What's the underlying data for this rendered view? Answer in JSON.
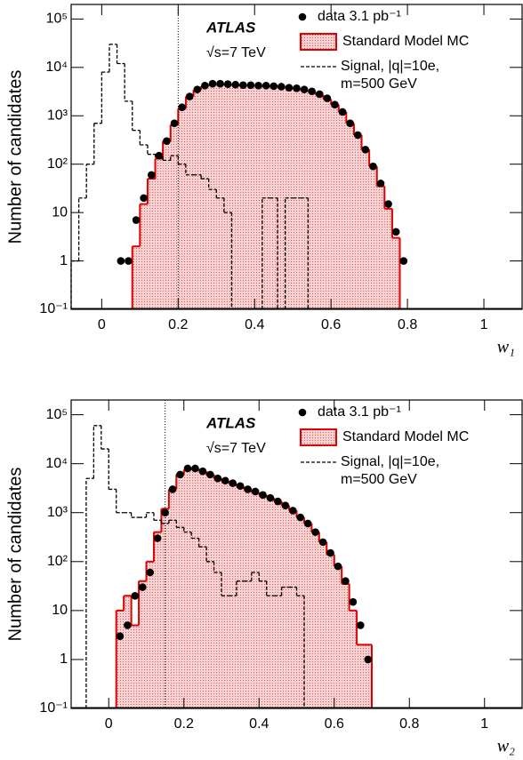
{
  "chart_data": [
    {
      "type": "histogram",
      "x_label": "w₁",
      "y_label": "Number of candidates",
      "annotations": [
        "ATLAS",
        "√s=7 TeV"
      ],
      "log_y": true,
      "vline": 0.2,
      "xlim": [
        -0.08,
        1.1
      ],
      "xticks": [
        0,
        0.2,
        0.4,
        0.6,
        0.8,
        1
      ],
      "ylim": [
        0.1,
        200000
      ],
      "yticks": [
        {
          "value": 0.1,
          "label": "10⁻¹"
        },
        1,
        10,
        {
          "value": 100,
          "label": "10²"
        },
        {
          "value": 1000,
          "label": "10³"
        },
        {
          "value": 10000,
          "label": "10⁴"
        },
        {
          "value": 100000,
          "label": "10⁵"
        }
      ],
      "bins": [
        -0.08,
        -0.06,
        -0.04,
        -0.02,
        0,
        0.02,
        0.04,
        0.06,
        0.08,
        0.1,
        0.12,
        0.14,
        0.16,
        0.18,
        0.2,
        0.22,
        0.24,
        0.26,
        0.28,
        0.3,
        0.32,
        0.34,
        0.36,
        0.38,
        0.4,
        0.42,
        0.44,
        0.46,
        0.48,
        0.5,
        0.52,
        0.54,
        0.56,
        0.58,
        0.6,
        0.62,
        0.64,
        0.66,
        0.68,
        0.7,
        0.72,
        0.74,
        0.76,
        0.78,
        0.8,
        0.82
      ],
      "series": [
        {
          "name": "data 3.1 pb⁻¹",
          "color": "#000000",
          "values": [
            null,
            null,
            null,
            null,
            null,
            null,
            1,
            1,
            7,
            20,
            60,
            150,
            300,
            700,
            1500,
            2500,
            3500,
            4200,
            4600,
            4600,
            4500,
            4400,
            4300,
            4300,
            4200,
            4200,
            4100,
            4000,
            3800,
            3700,
            3500,
            3200,
            2800,
            2300,
            1700,
            1200,
            700,
            400,
            200,
            90,
            40,
            15,
            4,
            1,
            null
          ]
        },
        {
          "name": "Standard Model MC",
          "color": "#e00000",
          "values": [
            null,
            null,
            null,
            null,
            null,
            null,
            null,
            null,
            2,
            15,
            50,
            130,
            300,
            650,
            1400,
            2500,
            3400,
            4100,
            4500,
            4500,
            4400,
            4300,
            4300,
            4200,
            4200,
            4100,
            4000,
            3900,
            3800,
            3600,
            3400,
            3100,
            2700,
            2200,
            1700,
            1200,
            700,
            400,
            200,
            90,
            35,
            12,
            3,
            null,
            null
          ]
        },
        {
          "name": "Signal, |q|=10e, m=500 GeV",
          "color": "#000000",
          "values": [
            1,
            20,
            100,
            700,
            8000,
            30000,
            12000,
            2000,
            500,
            250,
            160,
            140,
            120,
            150,
            100,
            60,
            60,
            50,
            30,
            20,
            10,
            null,
            null,
            null,
            null,
            20,
            20,
            null,
            20,
            20,
            20,
            null,
            null,
            null,
            null,
            null,
            null,
            null,
            null,
            null,
            null,
            null,
            null,
            null,
            null
          ]
        }
      ]
    },
    {
      "type": "histogram",
      "x_label": "w₂",
      "y_label": "Number of candidates",
      "annotations": [
        "ATLAS",
        "√s=7 TeV"
      ],
      "log_y": true,
      "vline": 0.15,
      "xlim": [
        -0.1,
        1.1
      ],
      "xticks": [
        0,
        0.2,
        0.4,
        0.6,
        0.8,
        1
      ],
      "ylim": [
        0.1,
        200000
      ],
      "yticks": [
        {
          "value": 0.1,
          "label": "10⁻¹"
        },
        1,
        10,
        {
          "value": 100,
          "label": "10²"
        },
        {
          "value": 1000,
          "label": "10³"
        },
        {
          "value": 10000,
          "label": "10⁴"
        },
        {
          "value": 100000,
          "label": "10⁵"
        }
      ],
      "bins": [
        -0.06,
        -0.04,
        -0.02,
        0,
        0.02,
        0.04,
        0.06,
        0.08,
        0.1,
        0.12,
        0.14,
        0.16,
        0.18,
        0.2,
        0.22,
        0.24,
        0.26,
        0.28,
        0.3,
        0.32,
        0.34,
        0.36,
        0.38,
        0.4,
        0.42,
        0.44,
        0.46,
        0.48,
        0.5,
        0.52,
        0.54,
        0.56,
        0.58,
        0.6,
        0.62,
        0.64,
        0.66,
        0.68,
        0.7
      ],
      "series": [
        {
          "name": "data 3.1 pb⁻¹",
          "color": "#000000",
          "values": [
            null,
            null,
            null,
            null,
            3,
            5,
            20,
            30,
            60,
            300,
            1000,
            3000,
            6000,
            8000,
            8000,
            7000,
            6000,
            5000,
            4500,
            4000,
            3500,
            3000,
            2700,
            2300,
            2000,
            1700,
            1400,
            1100,
            800,
            600,
            400,
            250,
            150,
            80,
            40,
            15,
            5,
            1
          ]
        },
        {
          "name": "Standard Model MC",
          "color": "#e00000",
          "values": [
            null,
            null,
            null,
            null,
            10,
            20,
            5,
            40,
            100,
            400,
            1200,
            3000,
            6000,
            7500,
            7800,
            7000,
            6000,
            5000,
            4400,
            3900,
            3400,
            3000,
            2600,
            2300,
            2000,
            1700,
            1400,
            1100,
            800,
            600,
            400,
            250,
            140,
            80,
            35,
            10,
            2,
            2
          ]
        },
        {
          "name": "Signal, |q|=10e, m=500 GeV",
          "color": "#000000",
          "values": [
            5000,
            60000,
            20000,
            3000,
            1000,
            1000,
            800,
            800,
            1000,
            700,
            600,
            700,
            500,
            400,
            300,
            200,
            100,
            60,
            20,
            20,
            40,
            40,
            60,
            40,
            20,
            20,
            30,
            30,
            20,
            null,
            null,
            null,
            null,
            null,
            null,
            null,
            null,
            null
          ]
        }
      ]
    }
  ]
}
